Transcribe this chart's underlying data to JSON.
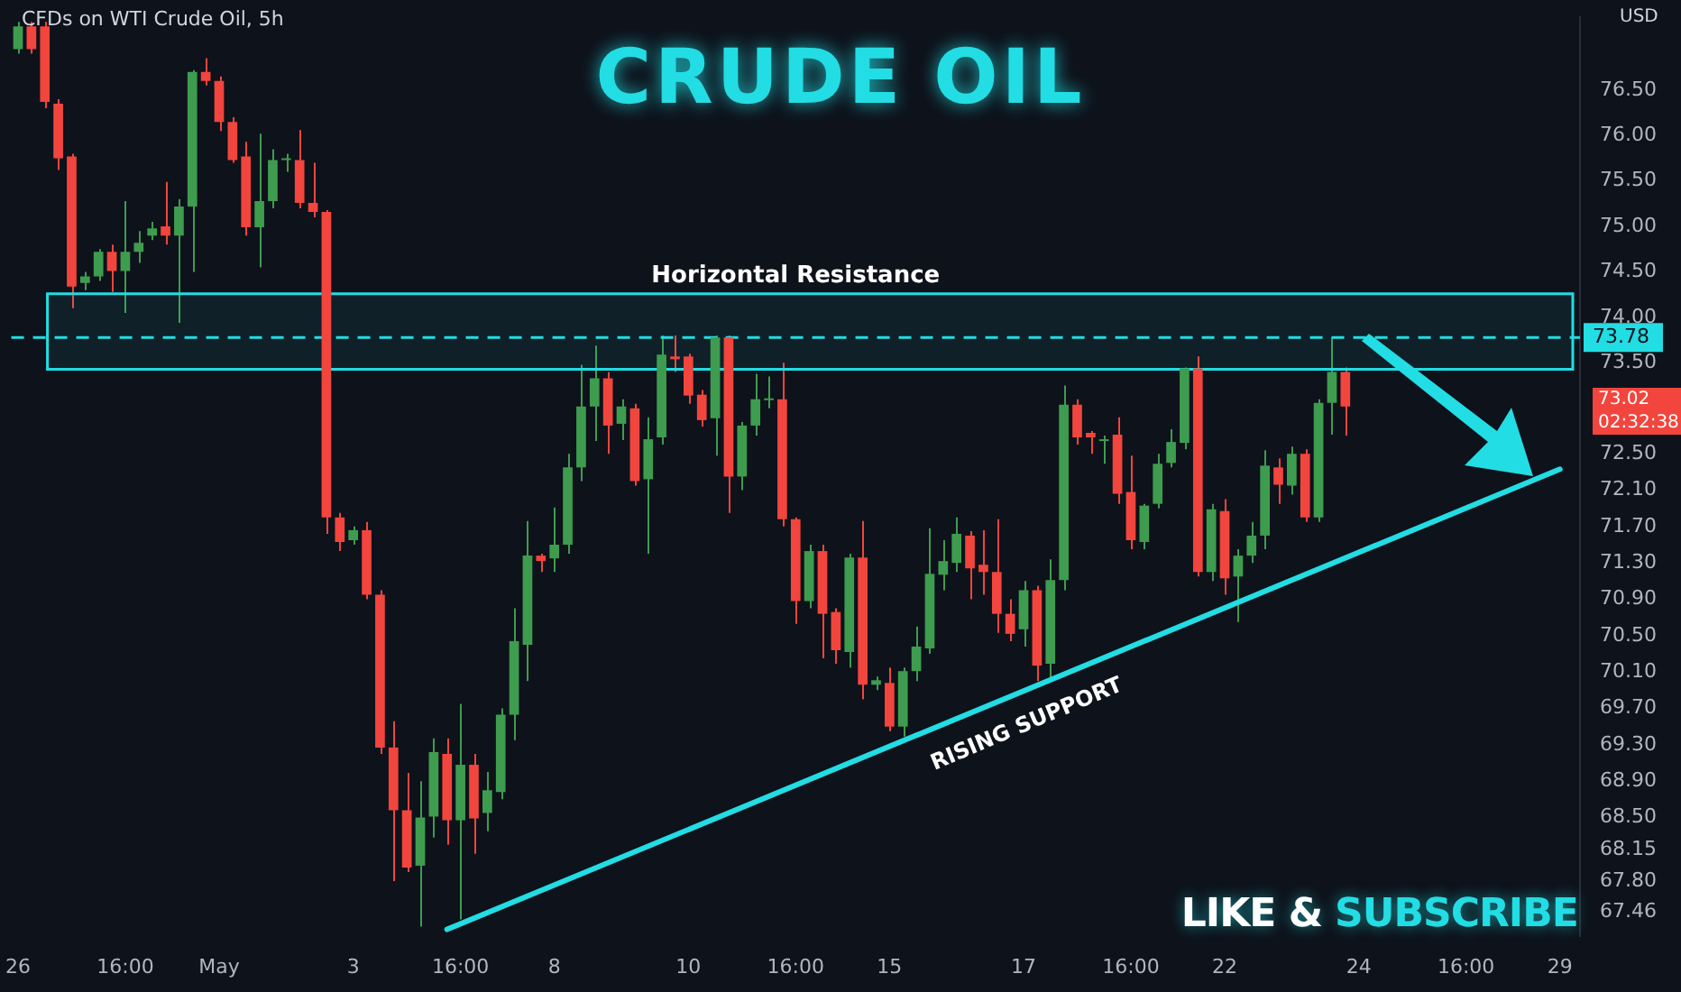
{
  "chart_data": {
    "type": "candlestick",
    "title": "CRUDE OIL",
    "subtitle": "CFDs on WTI Crude Oil, 5h",
    "ylabel": "USD",
    "categories": [
      "26",
      null,
      null,
      null,
      null,
      null,
      null,
      null,
      "16:00",
      null,
      null,
      null,
      null,
      null,
      null,
      "May",
      null,
      null,
      null,
      null,
      null,
      null,
      null,
      null,
      null,
      "3",
      null,
      null,
      null,
      null,
      null,
      null,
      null,
      "16:00",
      null,
      null,
      null,
      null,
      null,
      null,
      "8",
      null,
      null,
      null,
      null,
      null,
      null,
      null,
      null,
      null,
      "10",
      null,
      null,
      null,
      null,
      null,
      null,
      null,
      "16:00",
      null,
      null,
      null,
      null,
      null,
      null,
      "15",
      null,
      null,
      null,
      null,
      null,
      null,
      null,
      null,
      null,
      "17",
      null,
      null,
      null,
      null,
      null,
      null,
      null,
      "16:00",
      null,
      null,
      null,
      null,
      null,
      null,
      "22",
      null,
      null,
      null,
      null,
      null,
      null,
      null,
      null,
      null,
      "24",
      null,
      null,
      null,
      null,
      null,
      null,
      null,
      "16:00",
      null,
      null,
      null,
      null,
      null,
      null,
      "29",
      null
    ],
    "ohlc": [
      [
        76.95,
        77.25,
        76.9,
        77.2
      ],
      [
        77.2,
        77.25,
        76.9,
        76.95
      ],
      [
        77.2,
        77.25,
        76.3,
        76.37
      ],
      [
        76.35,
        76.4,
        75.62,
        75.75
      ],
      [
        75.77,
        75.8,
        74.1,
        74.34
      ],
      [
        74.38,
        74.5,
        74.3,
        74.45
      ],
      [
        74.45,
        74.75,
        74.4,
        74.72
      ],
      [
        74.72,
        74.8,
        74.28,
        74.51
      ],
      [
        74.51,
        75.28,
        74.05,
        74.72
      ],
      [
        74.72,
        74.95,
        74.6,
        74.82
      ],
      [
        74.9,
        75.05,
        74.85,
        74.98
      ],
      [
        75.0,
        75.49,
        74.8,
        74.9
      ],
      [
        74.9,
        75.3,
        73.94,
        75.22
      ],
      [
        75.22,
        76.72,
        74.5,
        76.7
      ],
      [
        76.7,
        76.85,
        76.55,
        76.6
      ],
      [
        76.6,
        76.65,
        76.05,
        76.15
      ],
      [
        76.15,
        76.2,
        75.7,
        75.73
      ],
      [
        75.77,
        75.93,
        74.9,
        74.99
      ],
      [
        74.99,
        76.02,
        74.55,
        75.28
      ],
      [
        75.28,
        75.85,
        75.2,
        75.73
      ],
      [
        75.73,
        75.8,
        75.6,
        75.75
      ],
      [
        75.73,
        76.06,
        75.2,
        75.26
      ],
      [
        75.26,
        75.7,
        75.1,
        75.16
      ],
      [
        75.16,
        75.18,
        71.62,
        71.8
      ],
      [
        71.8,
        71.85,
        71.43,
        71.53
      ],
      [
        71.55,
        71.7,
        71.5,
        71.66
      ],
      [
        71.66,
        71.75,
        70.9,
        70.95
      ],
      [
        70.95,
        71.0,
        69.2,
        69.27
      ],
      [
        69.27,
        69.56,
        67.8,
        68.58
      ],
      [
        68.58,
        68.99,
        67.9,
        67.95
      ],
      [
        67.97,
        68.9,
        67.3,
        68.5
      ],
      [
        68.51,
        69.37,
        68.28,
        69.22
      ],
      [
        69.2,
        69.37,
        68.2,
        68.47
      ],
      [
        68.47,
        69.75,
        67.38,
        69.08
      ],
      [
        69.08,
        69.2,
        68.1,
        68.49
      ],
      [
        68.55,
        69.0,
        68.35,
        68.8
      ],
      [
        68.78,
        69.7,
        68.7,
        69.63
      ],
      [
        69.63,
        70.8,
        69.35,
        70.44
      ],
      [
        70.4,
        71.76,
        70.0,
        71.38
      ],
      [
        71.38,
        71.4,
        71.2,
        71.32
      ],
      [
        71.35,
        71.91,
        71.2,
        71.5
      ],
      [
        71.5,
        72.5,
        71.4,
        72.35
      ],
      [
        72.35,
        73.48,
        72.2,
        73.02
      ],
      [
        73.02,
        73.69,
        72.64,
        73.33
      ],
      [
        73.33,
        73.4,
        72.5,
        72.81
      ],
      [
        72.83,
        73.1,
        72.65,
        73.02
      ],
      [
        73.0,
        73.05,
        72.15,
        72.2
      ],
      [
        72.22,
        72.9,
        71.4,
        72.66
      ],
      [
        72.68,
        73.8,
        72.6,
        73.59
      ],
      [
        73.57,
        73.8,
        73.4,
        73.54
      ],
      [
        73.57,
        73.6,
        73.05,
        73.14
      ],
      [
        73.15,
        73.2,
        72.8,
        72.87
      ],
      [
        72.89,
        73.8,
        72.48,
        73.78
      ],
      [
        73.78,
        73.8,
        71.85,
        72.25
      ],
      [
        72.25,
        72.85,
        72.1,
        72.81
      ],
      [
        72.81,
        73.38,
        72.7,
        73.1
      ],
      [
        73.09,
        73.35,
        73.0,
        73.11
      ],
      [
        73.1,
        73.5,
        71.7,
        71.78
      ],
      [
        71.78,
        71.8,
        70.63,
        70.88
      ],
      [
        70.88,
        71.5,
        70.8,
        71.43
      ],
      [
        71.43,
        71.5,
        70.25,
        70.74
      ],
      [
        70.76,
        70.8,
        70.19,
        70.34
      ],
      [
        70.32,
        71.4,
        70.15,
        71.36
      ],
      [
        71.36,
        71.76,
        69.8,
        69.96
      ],
      [
        69.96,
        70.05,
        69.9,
        70.01
      ],
      [
        69.98,
        70.15,
        69.45,
        69.5
      ],
      [
        69.5,
        70.15,
        69.39,
        70.11
      ],
      [
        70.11,
        70.6,
        70.0,
        70.38
      ],
      [
        70.36,
        71.68,
        70.3,
        71.18
      ],
      [
        71.17,
        71.55,
        71.0,
        71.32
      ],
      [
        71.3,
        71.8,
        71.2,
        71.62
      ],
      [
        71.6,
        71.65,
        70.9,
        71.24
      ],
      [
        71.28,
        71.66,
        70.95,
        71.2
      ],
      [
        71.2,
        71.78,
        70.53,
        70.74
      ],
      [
        70.74,
        70.9,
        70.44,
        70.52
      ],
      [
        70.57,
        71.1,
        70.38,
        71.0
      ],
      [
        71.0,
        71.05,
        70.0,
        70.17
      ],
      [
        70.19,
        71.34,
        70.0,
        71.11
      ],
      [
        71.11,
        73.25,
        71.0,
        73.04
      ],
      [
        73.04,
        73.1,
        72.6,
        72.68
      ],
      [
        72.73,
        72.75,
        72.5,
        72.68
      ],
      [
        72.64,
        72.7,
        72.39,
        72.66
      ],
      [
        72.71,
        72.9,
        71.95,
        72.06
      ],
      [
        72.08,
        72.48,
        71.45,
        71.55
      ],
      [
        71.53,
        71.95,
        71.45,
        71.93
      ],
      [
        71.95,
        72.5,
        71.9,
        72.39
      ],
      [
        72.4,
        72.77,
        72.35,
        72.63
      ],
      [
        72.62,
        73.45,
        72.55,
        73.44
      ],
      [
        73.44,
        73.57,
        71.15,
        71.2
      ],
      [
        71.2,
        71.95,
        71.1,
        71.89
      ],
      [
        71.87,
        72.0,
        70.95,
        71.13
      ],
      [
        71.15,
        71.45,
        70.65,
        71.38
      ],
      [
        71.38,
        71.75,
        71.3,
        71.6
      ],
      [
        71.6,
        72.54,
        71.45,
        72.37
      ],
      [
        72.35,
        72.45,
        71.95,
        72.16
      ],
      [
        72.15,
        72.58,
        72.05,
        72.5
      ],
      [
        72.5,
        72.55,
        71.75,
        71.8
      ],
      [
        71.8,
        73.1,
        71.75,
        73.06
      ],
      [
        73.06,
        73.78,
        72.71,
        73.4
      ],
      [
        73.4,
        73.45,
        72.7,
        73.02
      ],
      null,
      null,
      null,
      null,
      null,
      null,
      null,
      null,
      null,
      null,
      null,
      null,
      null,
      null,
      null,
      null,
      null
    ],
    "series": [
      {
        "type": "line",
        "color": "#22dde3",
        "values": [
          null,
          null,
          null,
          null,
          null,
          null,
          null,
          null,
          null,
          null,
          null,
          null,
          null,
          null,
          null,
          null,
          null,
          null,
          null,
          null,
          null,
          null,
          null,
          null,
          null,
          null,
          null,
          null,
          null,
          null,
          null,
          null,
          67.27,
          null,
          null,
          null,
          null,
          null,
          null,
          null,
          null,
          null,
          null,
          null,
          null,
          null,
          null,
          null,
          null,
          null,
          null,
          null,
          null,
          null,
          null,
          null,
          null,
          null,
          null,
          null,
          null,
          null,
          null,
          null,
          null,
          null,
          null,
          null,
          null,
          null,
          null,
          null,
          null,
          null,
          null,
          null,
          null,
          null,
          null,
          null,
          null,
          null,
          null,
          null,
          null,
          null,
          null,
          null,
          null,
          null,
          null,
          null,
          null,
          null,
          null,
          null,
          null,
          null,
          null,
          null,
          null,
          null,
          null,
          null,
          null,
          null,
          null,
          null,
          null,
          null,
          null,
          null,
          null,
          null,
          null,
          72.33,
          null
        ]
      }
    ],
    "ylim": [
      67.2,
      77.3
    ],
    "yticks": [
      {
        "value": 76.5,
        "label": "76.50"
      },
      {
        "value": 76,
        "label": "76.00"
      },
      {
        "value": 75.5,
        "label": "75.50"
      },
      {
        "value": 75,
        "label": "75.00"
      },
      {
        "value": 74.5,
        "label": "74.50"
      },
      {
        "value": 74,
        "label": "74.00"
      },
      {
        "value": 73.5,
        "label": "73.50"
      },
      {
        "value": 72.5,
        "label": "72.50"
      },
      {
        "value": 72.1,
        "label": "72.10"
      },
      {
        "value": 71.7,
        "label": "71.70"
      },
      {
        "value": 71.3,
        "label": "71.30"
      },
      {
        "value": 70.9,
        "label": "70.90"
      },
      {
        "value": 70.5,
        "label": "70.50"
      },
      {
        "value": 70.1,
        "label": "70.10"
      },
      {
        "value": 69.7,
        "label": "69.70"
      },
      {
        "value": 69.3,
        "label": "69.30"
      },
      {
        "value": 68.9,
        "label": "68.90"
      },
      {
        "value": 68.5,
        "label": "68.50"
      },
      {
        "value": 68.15,
        "label": "68.15"
      },
      {
        "value": 67.8,
        "label": "67.80"
      },
      {
        "value": 67.46,
        "label": "67.46"
      }
    ],
    "ref_lines": [
      {
        "axis": "y",
        "value": 73.78,
        "label": "73.78",
        "color": "#22dde3",
        "line_style": "dashed"
      }
    ],
    "bands": [
      {
        "axis": "y",
        "from": 73.43,
        "to": 74.26,
        "label": "Horizontal Resistance",
        "color": "#22dde3"
      }
    ],
    "annotations": [
      "RISING SUPPORT",
      "LIKE &",
      "SUBSCRIBE",
      "73.02",
      "02:32:38"
    ]
  }
}
